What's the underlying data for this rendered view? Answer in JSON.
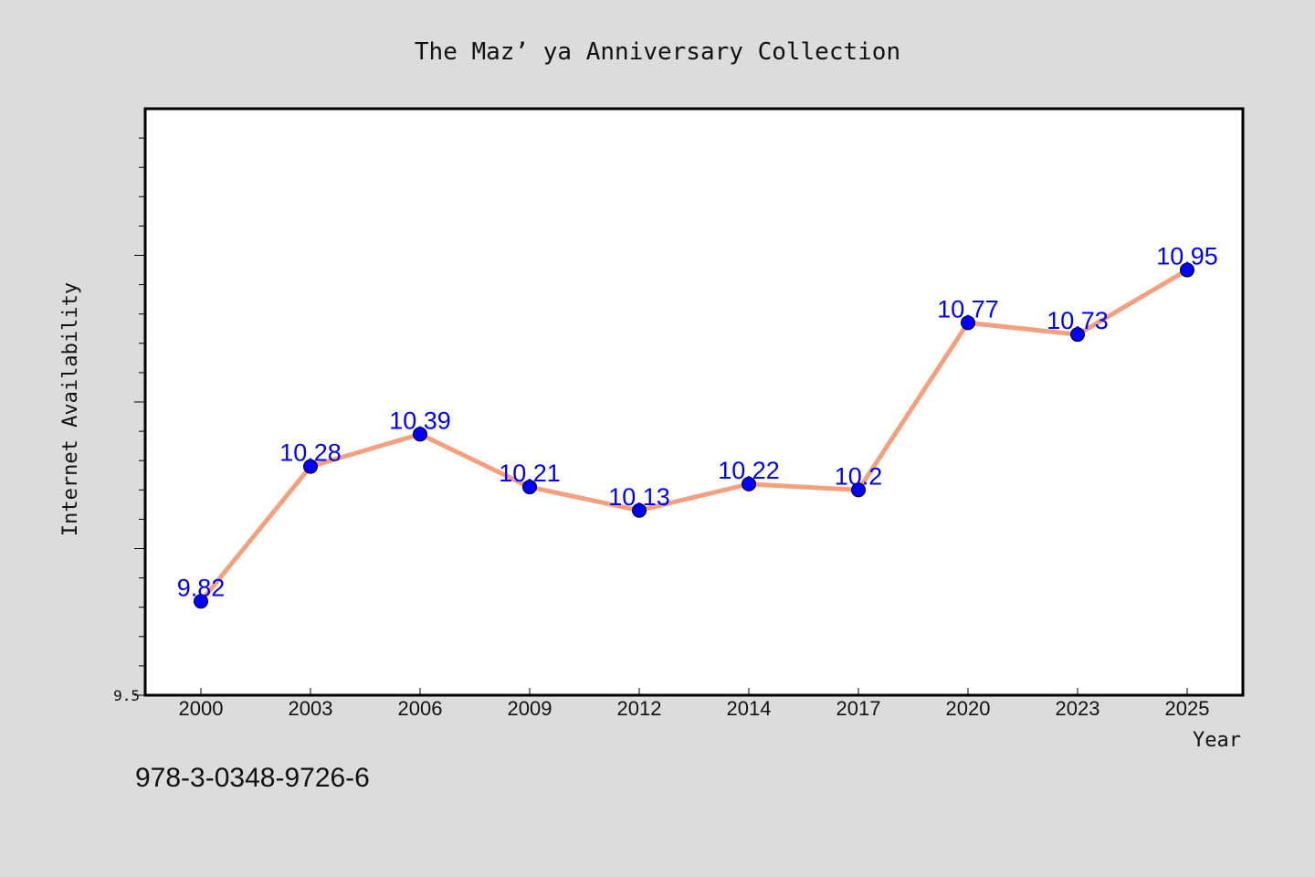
{
  "chart_data": {
    "type": "line",
    "title": "The Maz’ ya Anniversary Collection",
    "xlabel": "Year",
    "ylabel": "Internet Availability",
    "categories": [
      "2000",
      "2003",
      "2006",
      "2009",
      "2012",
      "2014",
      "2017",
      "2020",
      "2023",
      "2025"
    ],
    "series": [
      {
        "values": [
          9.82,
          10.28,
          10.39,
          10.21,
          10.13,
          10.22,
          10.2,
          10.77,
          10.73,
          10.95
        ]
      }
    ],
    "data_labels": [
      "9.82",
      "10.28",
      "10.39",
      "10.21",
      "10.13",
      "10.22",
      "10.2",
      "10.77",
      "10.73",
      "10.95"
    ],
    "ylim": [
      9.5,
      11.5
    ],
    "yticks_labeled": [
      "9.5"
    ],
    "grid": false,
    "legend": "none",
    "colors": {
      "line": "#f4a07e",
      "marker": "#0000ff",
      "data_label": "#0000ff",
      "plot_background": "#ffffff",
      "page_background": "#dcdcdc"
    }
  },
  "footer": {
    "isbn": "978-3-0348-9726-6"
  }
}
